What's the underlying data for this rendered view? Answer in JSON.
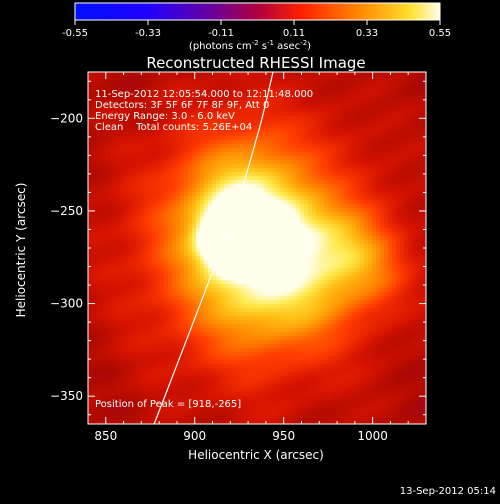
{
  "chart_data": {
    "type": "heatmap",
    "title": "Reconstructed RHESSI Image",
    "xlabel": "Heliocentric X (arcsec)",
    "ylabel": "Heliocentric Y (arcsec)",
    "xlim": [
      840,
      1030
    ],
    "ylim": [
      -365,
      -175
    ],
    "xticks": [
      850,
      900,
      950,
      1000
    ],
    "yticks": [
      -200,
      -250,
      -300,
      -350
    ],
    "colorbar": {
      "ticks": [
        "-0.55",
        "-0.33",
        "-0.11",
        "0.11",
        "0.33",
        "0.55"
      ],
      "range": [
        -0.55,
        0.55
      ],
      "label_parts": [
        "(photons cm",
        "-2",
        " s",
        "-1",
        " asec",
        "-2",
        ")"
      ]
    },
    "annotations": [
      "11-Sep-2012 12:05:54.000 to 12:11:48.000",
      "Detectors: 3F 5F 6F 7F 8F 9F, Att 0",
      "Energy Range: 3.0 - 6.0 keV",
      "Clean    Total counts: 5.26E+04"
    ],
    "peak_label": "Position of Peak = [918,-265]",
    "peak": [
      918,
      -265
    ],
    "sources": [
      {
        "x": 918,
        "y": -265,
        "amp": 0.55,
        "sigma": 9
      },
      {
        "x": 925,
        "y": -262,
        "amp": 0.32,
        "sigma": 22
      },
      {
        "x": 955,
        "y": -262,
        "amp": 0.17,
        "sigma": 16
      },
      {
        "x": 985,
        "y": -270,
        "amp": 0.18,
        "sigma": 15
      },
      {
        "x": 965,
        "y": -295,
        "amp": 0.14,
        "sigma": 18
      },
      {
        "x": 932,
        "y": -300,
        "amp": 0.13,
        "sigma": 20
      },
      {
        "x": 1000,
        "y": -285,
        "amp": 0.1,
        "sigma": 14
      },
      {
        "x": 930,
        "y": -235,
        "amp": 0.12,
        "sigma": 20
      },
      {
        "x": 935,
        "y": -270,
        "amp": 0.25,
        "sigma": 50
      }
    ],
    "limb_arc": [
      [
        876,
        -368
      ],
      [
        918,
        -262
      ],
      [
        935,
        -210
      ],
      [
        944,
        -175
      ]
    ],
    "timestamp": "13-Sep-2012 05:14"
  }
}
